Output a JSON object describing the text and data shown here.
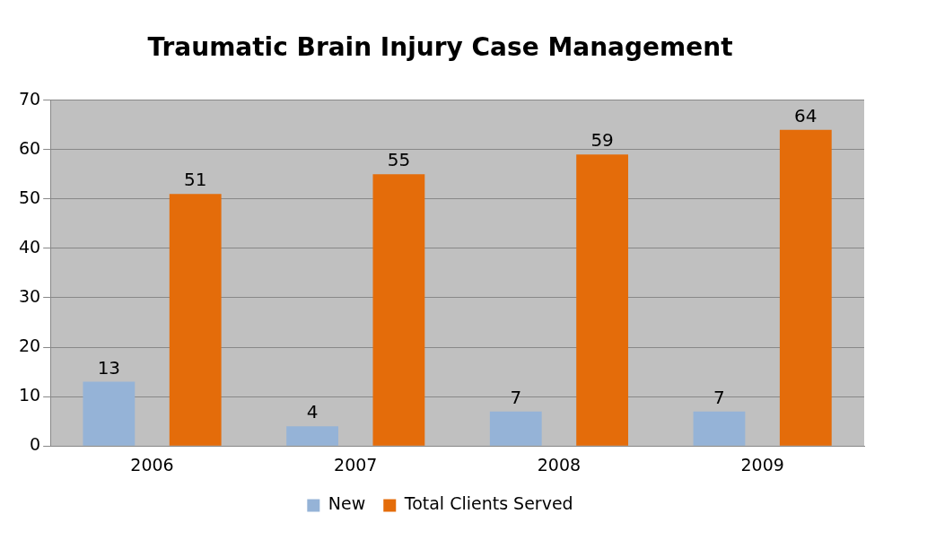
{
  "chart_data": {
    "type": "bar",
    "title": "Traumatic Brain Injury Case Management",
    "categories": [
      "2006",
      "2007",
      "2008",
      "2009"
    ],
    "series": [
      {
        "name": "New",
        "color": "#95b3d7",
        "values": [
          13,
          4,
          7,
          7
        ]
      },
      {
        "name": "Total Clients Served",
        "color": "#e46c0a",
        "values": [
          51,
          55,
          59,
          64
        ]
      }
    ],
    "ylim": [
      0,
      70
    ],
    "yticks": [
      0,
      10,
      20,
      30,
      40,
      50,
      60,
      70
    ],
    "grid": "y",
    "legend": "bottom",
    "data_labels": true
  }
}
